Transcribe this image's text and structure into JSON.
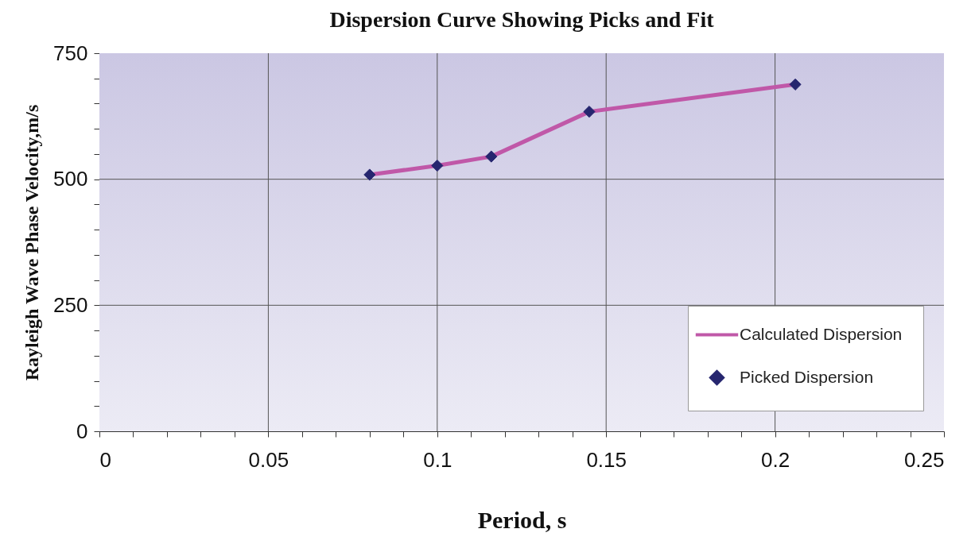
{
  "chart_data": {
    "type": "line",
    "title": "Dispersion Curve Showing Picks and Fit",
    "xlabel": "Period, s",
    "ylabel": "Rayleigh Wave Phase Velocity,m/s",
    "x": [
      0.08,
      0.1,
      0.116,
      0.145,
      0.206
    ],
    "series": [
      {
        "name": "Calculated Dispersion",
        "color": "#c058a8",
        "values": [
          509,
          527,
          545,
          634,
          688
        ]
      },
      {
        "name": "Picked Dispersion",
        "type": "scatter",
        "color": "#26266f",
        "marker": "diamond",
        "values": [
          509,
          527,
          545,
          634,
          688
        ]
      }
    ],
    "xlim": [
      0,
      0.25
    ],
    "xticks": [
      0,
      {
        "value": 0.01,
        "label": null
      },
      {
        "value": 0.02,
        "label": null
      },
      {
        "value": 0.03,
        "label": null
      },
      {
        "value": 0.04,
        "label": null
      },
      0.05,
      {
        "value": 0.06,
        "label": null
      },
      {
        "value": 0.07,
        "label": null
      },
      {
        "value": 0.08,
        "label": null
      },
      {
        "value": 0.09,
        "label": null
      },
      0.1,
      {
        "value": 0.11,
        "label": null
      },
      {
        "value": 0.12,
        "label": null
      },
      {
        "value": 0.13,
        "label": null
      },
      {
        "value": 0.14,
        "label": null
      },
      0.15,
      {
        "value": 0.16,
        "label": null
      },
      {
        "value": 0.17,
        "label": null
      },
      {
        "value": 0.18,
        "label": null
      },
      {
        "value": 0.19,
        "label": null
      },
      0.2,
      {
        "value": 0.21,
        "label": null
      },
      {
        "value": 0.22,
        "label": null
      },
      {
        "value": 0.23,
        "label": null
      },
      {
        "value": 0.24,
        "label": null
      },
      0.25
    ],
    "ylim": [
      0,
      750
    ],
    "yticks": [
      0,
      {
        "value": 50,
        "label": null
      },
      {
        "value": 100,
        "label": null
      },
      {
        "value": 150,
        "label": null
      },
      {
        "value": 200,
        "label": null
      },
      250,
      {
        "value": 300,
        "label": null
      },
      {
        "value": 350,
        "label": null
      },
      {
        "value": 400,
        "label": null
      },
      {
        "value": 450,
        "label": null
      },
      500,
      {
        "value": 550,
        "label": null
      },
      {
        "value": 600,
        "label": null
      },
      {
        "value": 650,
        "label": null
      },
      {
        "value": 700,
        "label": null
      },
      750
    ],
    "grid": true,
    "legend": "bottom right"
  }
}
